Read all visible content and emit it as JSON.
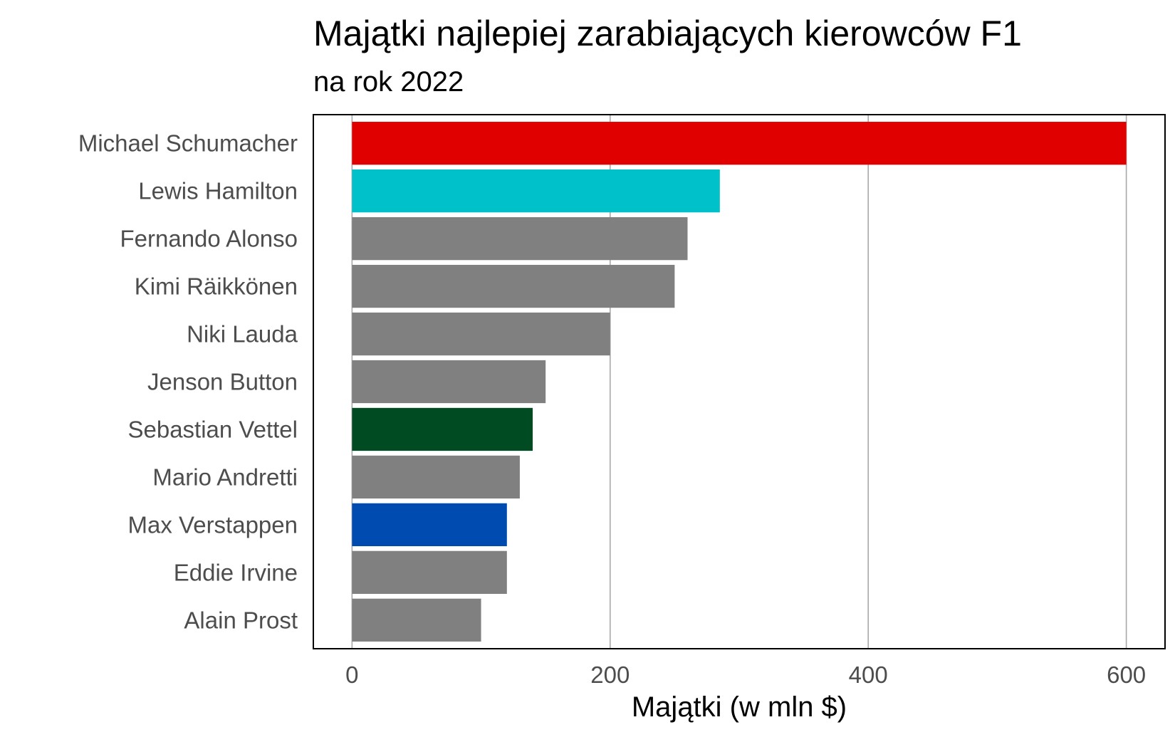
{
  "chart_data": {
    "type": "bar",
    "orientation": "horizontal",
    "title": "Majątki najlepiej zarabiających kierowców F1",
    "subtitle": "na rok 2022",
    "xlabel": "Majątki (w mln $)",
    "ylabel": "",
    "xlim": [
      -30,
      630
    ],
    "x_ticks": [
      0,
      200,
      400,
      600
    ],
    "grid": "vertical-major",
    "legend": "none",
    "categories": [
      "Michael Schumacher",
      "Lewis Hamilton",
      "Fernando Alonso",
      "Kimi Räikkönen",
      "Niki Lauda",
      "Jenson Button",
      "Sebastian Vettel",
      "Mario Andretti",
      "Max Verstappen",
      "Eddie Irvine",
      "Alain Prost"
    ],
    "values": [
      600,
      285,
      260,
      250,
      200,
      150,
      140,
      130,
      120,
      120,
      100
    ],
    "colors": [
      "#E10000",
      "#00C1C9",
      "#808080",
      "#808080",
      "#808080",
      "#808080",
      "#004B21",
      "#808080",
      "#004BAF",
      "#808080",
      "#808080"
    ],
    "axis_text_color": "#4D4D4D",
    "grid_color": "#A8A8A8",
    "panel_border_color": "#000000"
  }
}
